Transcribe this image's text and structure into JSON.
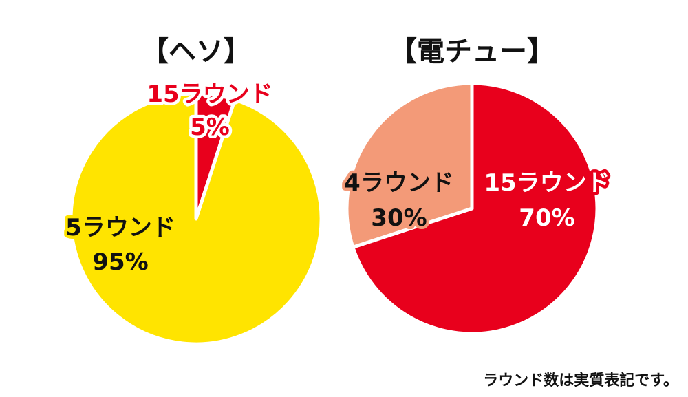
{
  "chart_data": [
    {
      "type": "pie",
      "title": "【ヘソ】",
      "slices": [
        {
          "label": "15ラウンド",
          "percent_label": "5%",
          "value": 5,
          "color": "#e8001c"
        },
        {
          "label": "5ラウンド",
          "percent_label": "95%",
          "value": 95,
          "color": "#ffe400"
        }
      ]
    },
    {
      "type": "pie",
      "title": "【電チュー】",
      "slices": [
        {
          "label": "15ラウンド",
          "percent_label": "70%",
          "value": 70,
          "color": "#e8001c"
        },
        {
          "label": "4ラウンド",
          "percent_label": "30%",
          "value": 30,
          "color": "#f39a78"
        }
      ]
    }
  ],
  "footnote": "ラウンド数は実質表記です。"
}
